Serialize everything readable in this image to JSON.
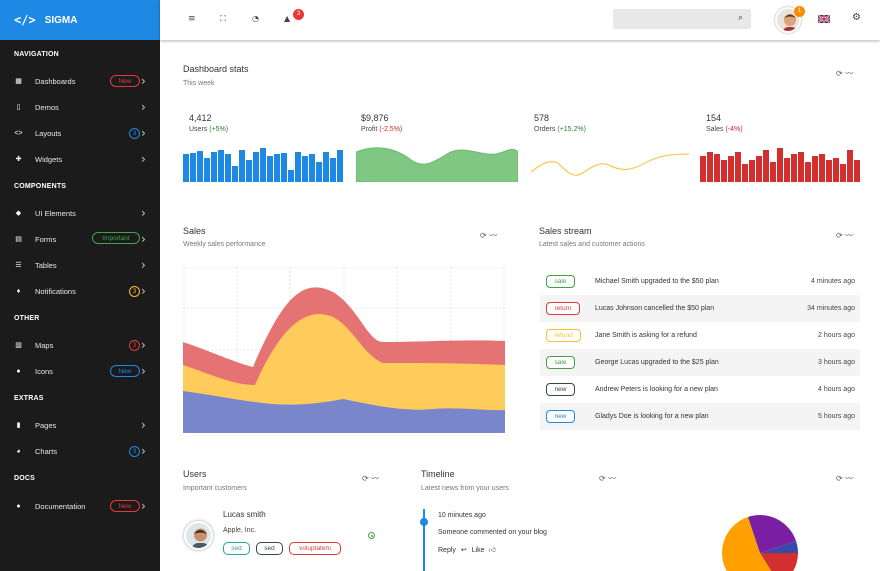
{
  "brand": {
    "name": "SIGMA",
    "logo": "</>"
  },
  "sidebar": {
    "sections": [
      "NAVIGATION",
      "COMPONENTS",
      "OTHER",
      "EXTRAS",
      "DOCS"
    ],
    "items": [
      {
        "label": "Dashboards",
        "icon": "grid-icon",
        "badge": "New"
      },
      {
        "label": "Demos",
        "icon": "book-icon"
      },
      {
        "label": "Layouts",
        "icon": "code-icon",
        "count": "3"
      },
      {
        "label": "Widgets",
        "icon": "puzzle-icon"
      },
      {
        "label": "UI Elements",
        "icon": "tag-icon"
      },
      {
        "label": "Forms",
        "icon": "form-icon",
        "badge": "Important"
      },
      {
        "label": "Tables",
        "icon": "list-icon"
      },
      {
        "label": "Notifications",
        "icon": "bell-icon",
        "count": "3"
      },
      {
        "label": "Maps",
        "icon": "map-icon",
        "count": "3"
      },
      {
        "label": "Icons",
        "icon": "compass-icon",
        "badge": "New"
      },
      {
        "label": "Pages",
        "icon": "file-icon"
      },
      {
        "label": "Charts",
        "icon": "pie-icon",
        "count": "3"
      },
      {
        "label": "Documentation",
        "icon": "info-icon",
        "badge": "New"
      }
    ]
  },
  "topbar": {
    "notification_count": "3",
    "avatar_badge": "1"
  },
  "stats": {
    "title": "Dashboard stats",
    "subtitle": "This week",
    "cards": [
      {
        "value": "4,412",
        "label": "Users",
        "change": "(+5%)",
        "color": "#1e88e5"
      },
      {
        "value": "$9,876",
        "label": "Profit",
        "change": "(-2.5%)",
        "color": "#81c784"
      },
      {
        "value": "578",
        "label": "Orders",
        "change": "(+15.2%)",
        "color": "#fbc02d"
      },
      {
        "value": "154",
        "label": "Sales",
        "change": "(-4%)",
        "color": "#d32f2f"
      }
    ]
  },
  "sales": {
    "title": "Sales",
    "subtitle": "Weekly sales performance"
  },
  "stream": {
    "title": "Sales stream",
    "subtitle": "Latest sales and customer actions",
    "rows": [
      {
        "tag": "sale",
        "text": "Michael Smith upgraded to the $50 plan",
        "time": "4 minutes ago",
        "color": "#43a047"
      },
      {
        "tag": "return",
        "text": "Lucas Johnson cancelled the $50 plan",
        "time": "34 minutes ago",
        "color": "#e53935"
      },
      {
        "tag": "refund",
        "text": "Jane Smith is asking for a refund",
        "time": "2 hours ago",
        "color": "#fbc02d"
      },
      {
        "tag": "sale",
        "text": "George Lucas upgraded to the $25 plan",
        "time": "3 hours ago",
        "color": "#43a047"
      },
      {
        "tag": "new",
        "text": "Andrew Peters is looking for a new plan",
        "time": "4 hours ago",
        "color": "#37474f"
      },
      {
        "tag": "new",
        "text": "Gladys Doe is looking for a new plan",
        "time": "5 hours ago",
        "color": "#1e88e5"
      }
    ]
  },
  "users": {
    "title": "Users",
    "subtitle": "Important customers",
    "name": "Lucas smith",
    "company": "Apple, Inc.",
    "tags": [
      "sed",
      "sed",
      "voluptatem"
    ]
  },
  "timeline": {
    "title": "Timeline",
    "subtitle": "Latest news from your users",
    "time": "10 minutes ago",
    "text": "Someone commented on your blog",
    "reply": "Reply",
    "like": "Like"
  }
}
